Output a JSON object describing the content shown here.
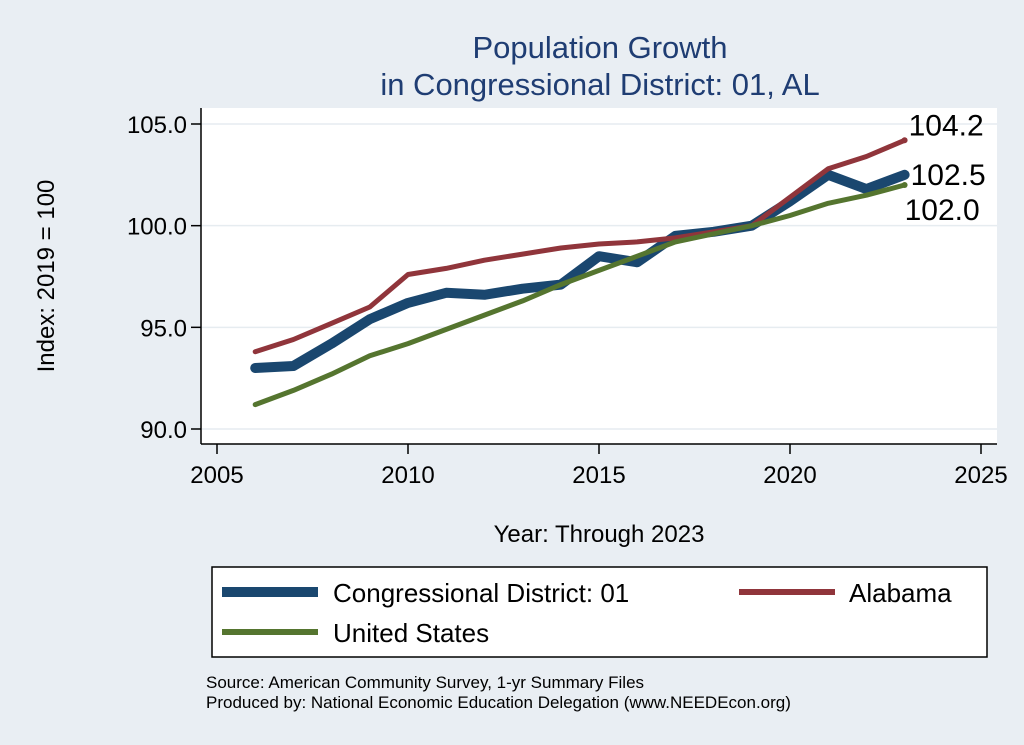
{
  "chart_data": {
    "type": "line",
    "title": [
      "Population Growth",
      "in Congressional District: 01, AL"
    ],
    "xlabel": "Year: Through 2023",
    "ylabel": "Index: 2019 = 100",
    "xlim": [
      2005,
      2025
    ],
    "ylim": [
      90,
      105
    ],
    "xticks": [
      "2005",
      "2010",
      "2015",
      "2020",
      "2025"
    ],
    "yticks": [
      "90.0",
      "95.0",
      "100.0",
      "105.0"
    ],
    "grid": true,
    "legend_position": "bottom",
    "series": [
      {
        "name": "Congressional District: 01",
        "color": "#1a476f",
        "x": [
          2006,
          2007,
          2008,
          2009,
          2010,
          2011,
          2012,
          2013,
          2014,
          2015,
          2016,
          2017,
          2018,
          2019,
          2020,
          2021,
          2022,
          2023
        ],
        "values": [
          93.0,
          93.1,
          94.2,
          95.4,
          96.2,
          96.7,
          96.6,
          96.9,
          97.1,
          98.5,
          98.2,
          99.5,
          99.7,
          100.0,
          101.2,
          102.5,
          101.8,
          102.5
        ],
        "end_label": "102.5"
      },
      {
        "name": "Alabama",
        "color": "#90353b",
        "x": [
          2006,
          2007,
          2008,
          2009,
          2010,
          2011,
          2012,
          2013,
          2014,
          2015,
          2016,
          2017,
          2018,
          2019,
          2020,
          2021,
          2022,
          2023
        ],
        "values": [
          93.8,
          94.4,
          95.2,
          96.0,
          97.6,
          97.9,
          98.3,
          98.6,
          98.9,
          99.1,
          99.2,
          99.4,
          99.7,
          100.0,
          101.4,
          102.8,
          103.4,
          104.2
        ],
        "end_label": "104.2"
      },
      {
        "name": "United States",
        "color": "#55752f",
        "x": [
          2006,
          2007,
          2008,
          2009,
          2010,
          2011,
          2012,
          2013,
          2014,
          2015,
          2016,
          2017,
          2018,
          2019,
          2020,
          2021,
          2022,
          2023
        ],
        "values": [
          91.2,
          91.9,
          92.7,
          93.6,
          94.2,
          94.9,
          95.6,
          96.3,
          97.1,
          97.8,
          98.5,
          99.2,
          99.6,
          100.0,
          100.5,
          101.1,
          101.5,
          102.0
        ],
        "end_label": "102.0"
      }
    ],
    "source_lines": [
      "Source: American Community Survey, 1-yr Summary Files",
      "Produced by: National Economic Education Delegation (www.NEEDEcon.org)"
    ]
  }
}
